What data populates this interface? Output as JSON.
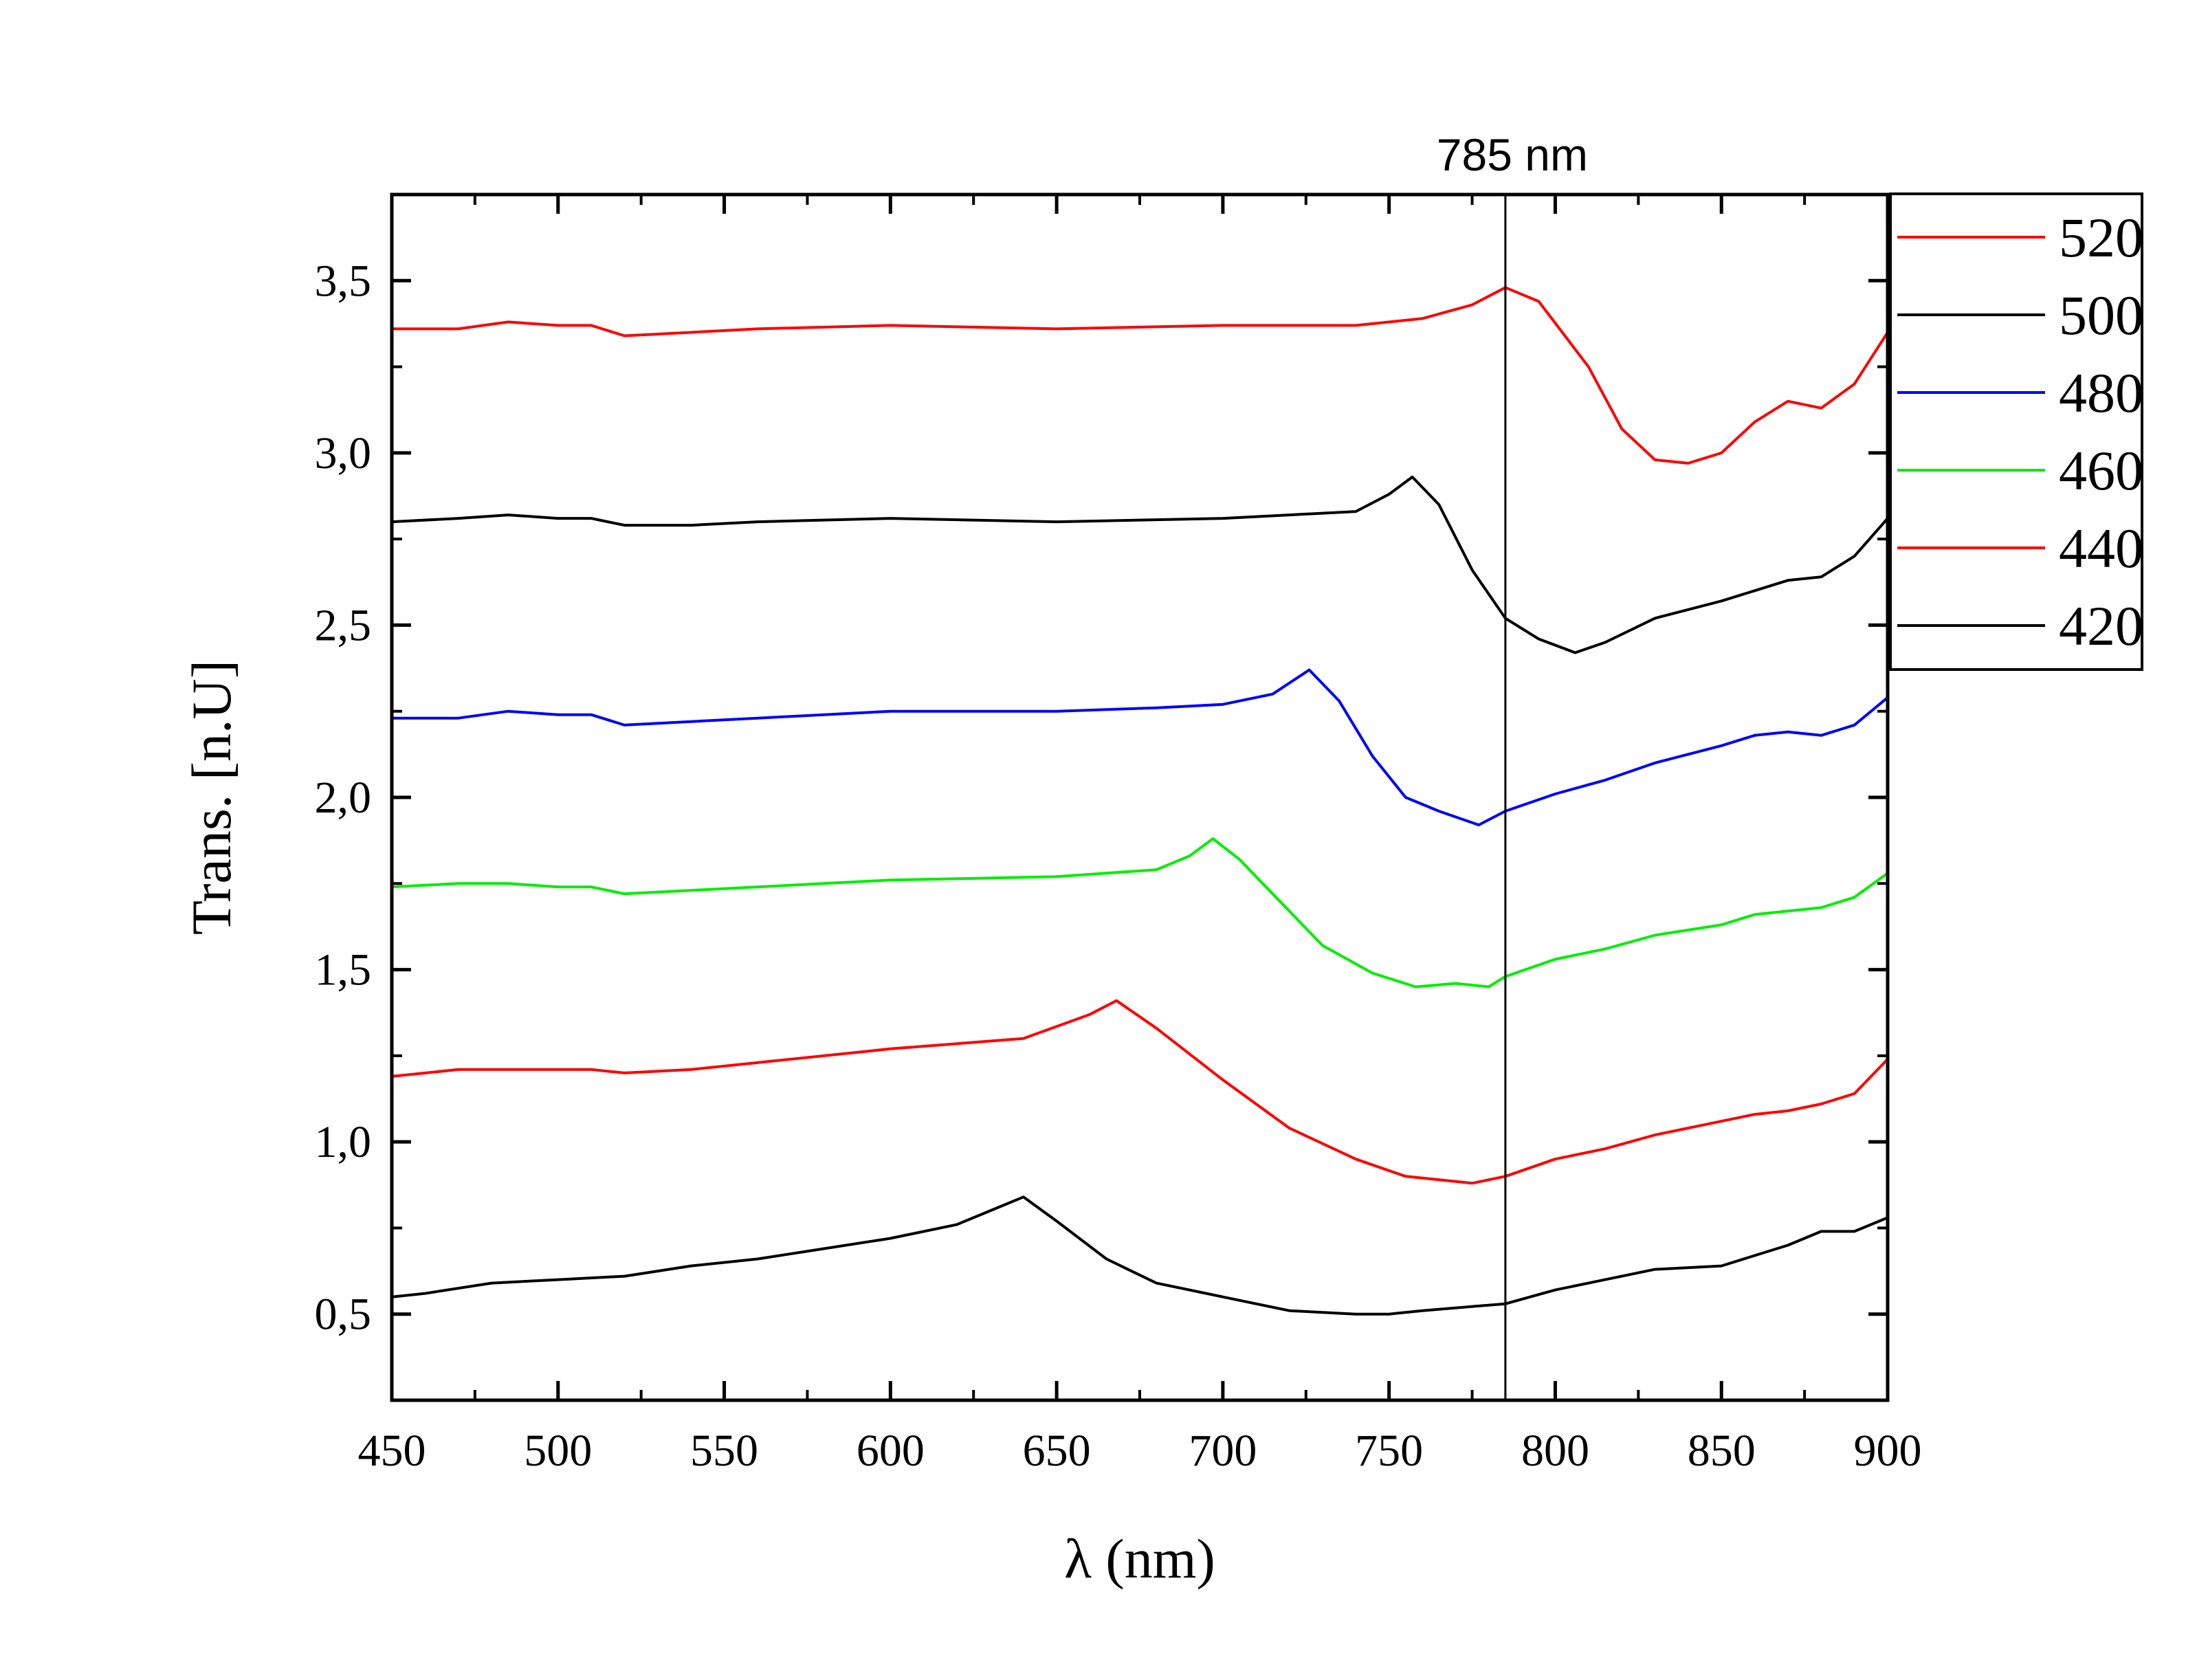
{
  "chart_data": {
    "type": "line",
    "xlabel": "λ (nm)",
    "ylabel": "Trans. [n.U]",
    "xlim": [
      450,
      900
    ],
    "ylim": [
      0.25,
      3.75
    ],
    "x_ticks": [
      450,
      500,
      550,
      600,
      650,
      700,
      750,
      800,
      850,
      900
    ],
    "x_tick_labels": [
      "450",
      "500",
      "550",
      "600",
      "650",
      "700",
      "750",
      "800",
      "850",
      "900"
    ],
    "y_ticks": [
      0.5,
      1.0,
      1.5,
      2.0,
      2.5,
      3.0,
      3.5
    ],
    "y_tick_labels": [
      "0,5",
      "1,0",
      "1,5",
      "2,0",
      "2,5",
      "3,0",
      "3,5"
    ],
    "grid": false,
    "legend_position": "outside-top-right",
    "annotation": {
      "text": "785 nm",
      "x": 785
    },
    "series": [
      {
        "name": "520",
        "color": "#ff0000",
        "x": [
          450,
          470,
          485,
          500,
          510,
          520,
          540,
          560,
          600,
          650,
          700,
          720,
          740,
          760,
          775,
          785,
          795,
          810,
          820,
          830,
          840,
          850,
          860,
          870,
          880,
          890,
          900
        ],
        "y": [
          3.36,
          3.36,
          3.38,
          3.37,
          3.37,
          3.34,
          3.35,
          3.36,
          3.37,
          3.36,
          3.37,
          3.37,
          3.37,
          3.39,
          3.43,
          3.48,
          3.44,
          3.25,
          3.07,
          2.98,
          2.97,
          3.0,
          3.09,
          3.15,
          3.13,
          3.2,
          3.35
        ]
      },
      {
        "name": "500",
        "color": "#000000",
        "x": [
          450,
          470,
          485,
          500,
          510,
          520,
          540,
          560,
          600,
          650,
          700,
          720,
          740,
          750,
          757,
          765,
          775,
          785,
          795,
          806,
          815,
          830,
          850,
          860,
          870,
          880,
          890,
          900
        ],
        "y": [
          2.8,
          2.81,
          2.82,
          2.81,
          2.81,
          2.79,
          2.79,
          2.8,
          2.81,
          2.8,
          2.81,
          2.82,
          2.83,
          2.88,
          2.93,
          2.85,
          2.66,
          2.52,
          2.46,
          2.42,
          2.45,
          2.52,
          2.57,
          2.6,
          2.63,
          2.64,
          2.7,
          2.81
        ]
      },
      {
        "name": "480",
        "color": "#0000ff",
        "x": [
          450,
          470,
          485,
          500,
          510,
          520,
          540,
          560,
          600,
          650,
          680,
          700,
          715,
          726,
          735,
          745,
          755,
          765,
          777,
          785,
          800,
          815,
          830,
          850,
          860,
          870,
          880,
          890,
          900
        ],
        "y": [
          2.23,
          2.23,
          2.25,
          2.24,
          2.24,
          2.21,
          2.22,
          2.23,
          2.25,
          2.25,
          2.26,
          2.27,
          2.3,
          2.37,
          2.28,
          2.12,
          2.0,
          1.96,
          1.92,
          1.96,
          2.01,
          2.05,
          2.1,
          2.15,
          2.18,
          2.19,
          2.18,
          2.21,
          2.29
        ]
      },
      {
        "name": "460",
        "color": "#00ee00",
        "x": [
          450,
          470,
          485,
          500,
          510,
          520,
          540,
          560,
          600,
          650,
          680,
          690,
          697,
          705,
          715,
          730,
          745,
          758,
          770,
          780,
          785,
          800,
          815,
          830,
          850,
          860,
          870,
          880,
          890,
          900
        ],
        "y": [
          1.74,
          1.75,
          1.75,
          1.74,
          1.74,
          1.72,
          1.73,
          1.74,
          1.76,
          1.77,
          1.79,
          1.83,
          1.88,
          1.82,
          1.72,
          1.57,
          1.49,
          1.45,
          1.46,
          1.45,
          1.48,
          1.53,
          1.56,
          1.6,
          1.63,
          1.66,
          1.67,
          1.68,
          1.71,
          1.78
        ]
      },
      {
        "name": "440",
        "color": "#ff0000",
        "x": [
          450,
          470,
          485,
          500,
          510,
          520,
          540,
          560,
          600,
          640,
          660,
          668,
          680,
          700,
          720,
          740,
          755,
          765,
          775,
          785,
          800,
          815,
          830,
          850,
          860,
          870,
          880,
          890,
          900
        ],
        "y": [
          1.19,
          1.21,
          1.21,
          1.21,
          1.21,
          1.2,
          1.21,
          1.23,
          1.27,
          1.3,
          1.37,
          1.41,
          1.33,
          1.18,
          1.04,
          0.95,
          0.9,
          0.89,
          0.88,
          0.9,
          0.95,
          0.98,
          1.02,
          1.06,
          1.08,
          1.09,
          1.11,
          1.14,
          1.24
        ]
      },
      {
        "name": "420",
        "color": "#000000",
        "x": [
          450,
          460,
          480,
          500,
          520,
          540,
          560,
          580,
          600,
          620,
          630,
          640,
          650,
          665,
          680,
          700,
          720,
          740,
          750,
          760,
          785,
          800,
          815,
          830,
          850,
          860,
          870,
          880,
          890,
          900
        ],
        "y": [
          0.55,
          0.56,
          0.59,
          0.6,
          0.61,
          0.64,
          0.66,
          0.69,
          0.72,
          0.76,
          0.8,
          0.84,
          0.77,
          0.66,
          0.59,
          0.55,
          0.51,
          0.5,
          0.5,
          0.51,
          0.53,
          0.57,
          0.6,
          0.63,
          0.64,
          0.67,
          0.7,
          0.74,
          0.74,
          0.78
        ]
      }
    ]
  }
}
